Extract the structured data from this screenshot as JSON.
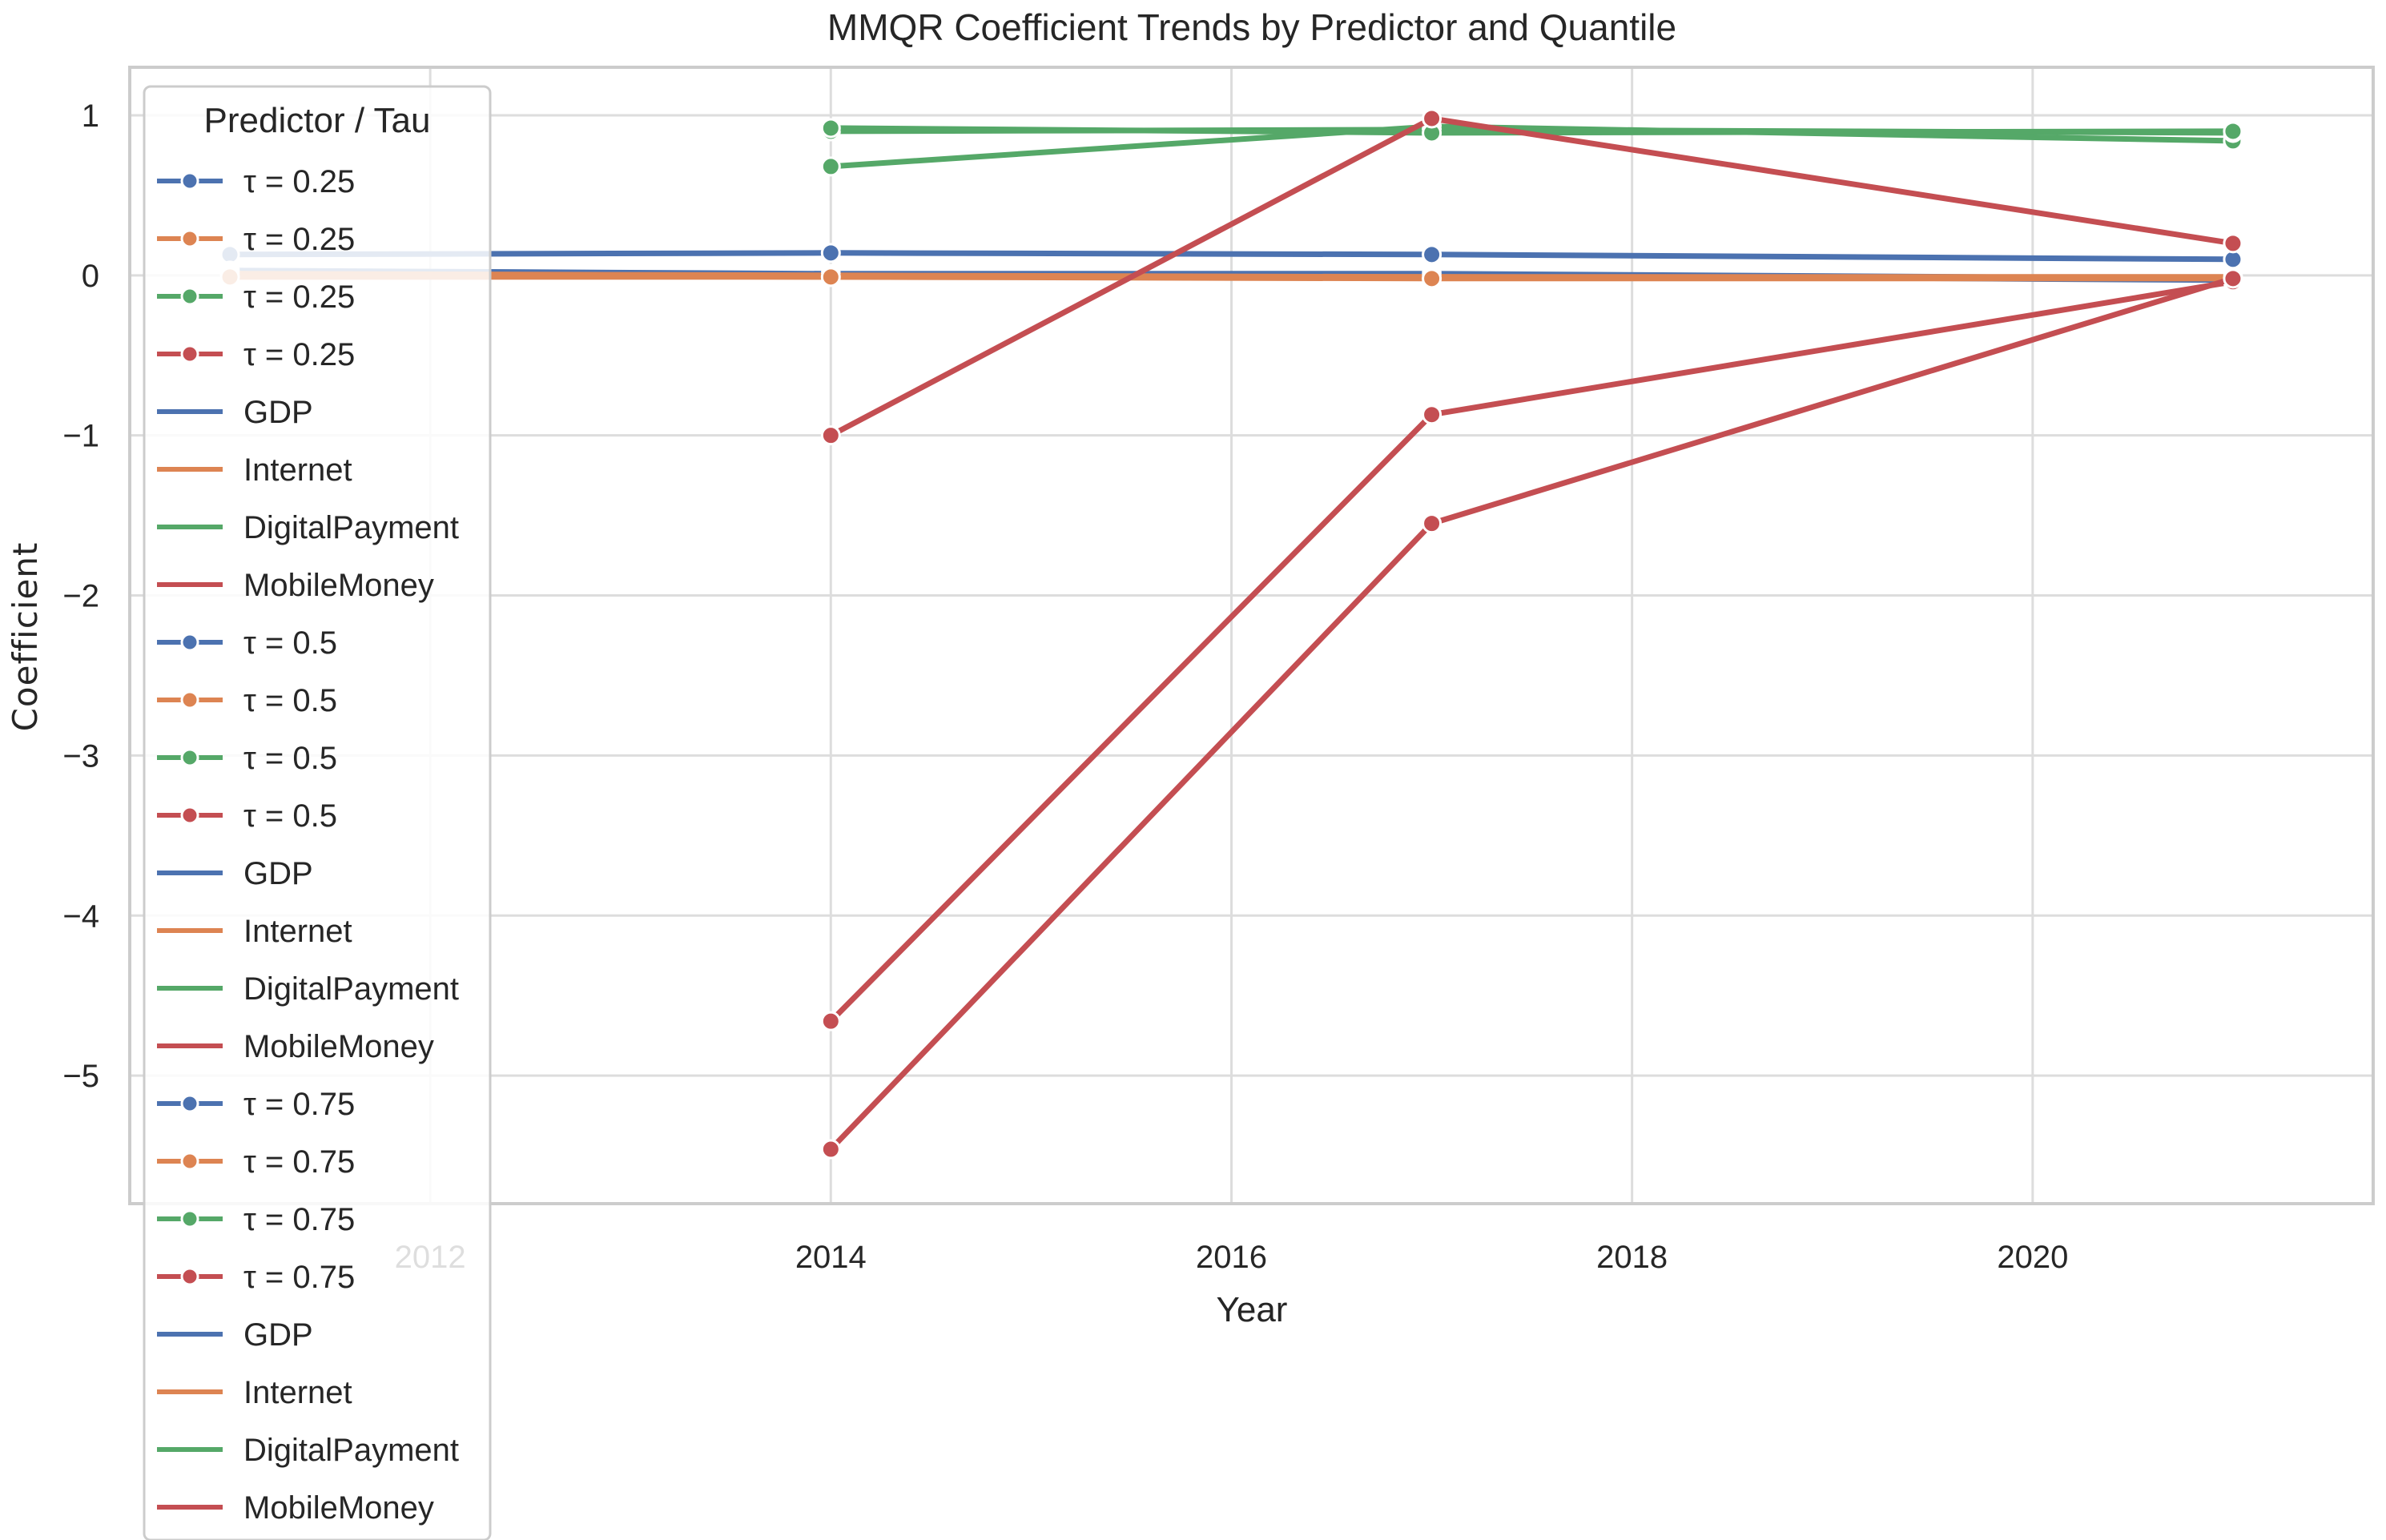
{
  "chart_data": {
    "type": "line",
    "title": "MMQR Coefficient Trends by Predictor and Quantile",
    "xlabel": "Year",
    "ylabel": "Coefficient",
    "xlim": [
      2010.5,
      2021.7
    ],
    "ylim": [
      -5.8,
      1.3
    ],
    "xticks": [
      2012,
      2014,
      2016,
      2018,
      2020
    ],
    "yticks": [
      1,
      0,
      -1,
      -2,
      -3,
      -4,
      -5
    ],
    "grid": true,
    "legend": {
      "title": "Predictor / Tau",
      "placement": "top-left",
      "entries": [
        {
          "label": "τ = 0.25",
          "color": "#4c72b0",
          "marker": true
        },
        {
          "label": "τ = 0.25",
          "color": "#dd8452",
          "marker": true
        },
        {
          "label": "τ = 0.25",
          "color": "#55a868",
          "marker": true
        },
        {
          "label": "τ = 0.25",
          "color": "#c44e52",
          "marker": true
        },
        {
          "label": "GDP",
          "color": "#4c72b0",
          "marker": false
        },
        {
          "label": "Internet",
          "color": "#dd8452",
          "marker": false
        },
        {
          "label": "DigitalPayment",
          "color": "#55a868",
          "marker": false
        },
        {
          "label": "MobileMoney",
          "color": "#c44e52",
          "marker": false
        },
        {
          "label": "τ = 0.5",
          "color": "#4c72b0",
          "marker": true
        },
        {
          "label": "τ = 0.5",
          "color": "#dd8452",
          "marker": true
        },
        {
          "label": "τ = 0.5",
          "color": "#55a868",
          "marker": true
        },
        {
          "label": "τ = 0.5",
          "color": "#c44e52",
          "marker": true
        },
        {
          "label": "GDP",
          "color": "#4c72b0",
          "marker": false
        },
        {
          "label": "Internet",
          "color": "#dd8452",
          "marker": false
        },
        {
          "label": "DigitalPayment",
          "color": "#55a868",
          "marker": false
        },
        {
          "label": "MobileMoney",
          "color": "#c44e52",
          "marker": false
        },
        {
          "label": "τ = 0.75",
          "color": "#4c72b0",
          "marker": true
        },
        {
          "label": "τ = 0.75",
          "color": "#dd8452",
          "marker": true
        },
        {
          "label": "τ = 0.75",
          "color": "#55a868",
          "marker": true
        },
        {
          "label": "τ = 0.75",
          "color": "#c44e52",
          "marker": true
        },
        {
          "label": "GDP",
          "color": "#4c72b0",
          "marker": false
        },
        {
          "label": "Internet",
          "color": "#dd8452",
          "marker": false
        },
        {
          "label": "DigitalPayment",
          "color": "#55a868",
          "marker": false
        },
        {
          "label": "MobileMoney",
          "color": "#c44e52",
          "marker": false
        }
      ]
    },
    "series": [
      {
        "name": "GDP, τ = 0.25",
        "color": "#4c72b0",
        "x": [
          2011,
          2014,
          2017,
          2021
        ],
        "y": [
          0.13,
          0.14,
          0.13,
          0.1
        ]
      },
      {
        "name": "GDP, τ = 0.5",
        "color": "#4c72b0",
        "x": [
          2011,
          2014,
          2017,
          2021
        ],
        "y": [
          0.03,
          0.01,
          0.01,
          -0.02
        ]
      },
      {
        "name": "GDP, τ = 0.75",
        "color": "#4c72b0",
        "x": [
          2011,
          2014,
          2017,
          2021
        ],
        "y": [
          0.02,
          0.0,
          0.0,
          -0.03
        ]
      },
      {
        "name": "Internet, τ = 0.25",
        "color": "#dd8452",
        "x": [
          2011,
          2014,
          2017,
          2021
        ],
        "y": [
          0.01,
          0.0,
          -0.01,
          -0.01
        ]
      },
      {
        "name": "Internet, τ = 0.5",
        "color": "#dd8452",
        "x": [
          2011,
          2014,
          2017,
          2021
        ],
        "y": [
          0.0,
          -0.01,
          -0.01,
          -0.02
        ]
      },
      {
        "name": "Internet, τ = 0.75",
        "color": "#dd8452",
        "x": [
          2011,
          2014,
          2017,
          2021
        ],
        "y": [
          -0.01,
          -0.01,
          -0.02,
          -0.02
        ]
      },
      {
        "name": "DigitalPayment, τ = 0.25",
        "color": "#55a868",
        "x": [
          2014,
          2017,
          2021
        ],
        "y": [
          0.68,
          0.93,
          0.84
        ]
      },
      {
        "name": "DigitalPayment, τ = 0.5",
        "color": "#55a868",
        "x": [
          2014,
          2017,
          2021
        ],
        "y": [
          0.9,
          0.91,
          0.89
        ]
      },
      {
        "name": "DigitalPayment, τ = 0.75",
        "color": "#55a868",
        "x": [
          2014,
          2017,
          2021
        ],
        "y": [
          0.92,
          0.89,
          0.9
        ]
      },
      {
        "name": "MobileMoney, τ = 0.25",
        "color": "#c44e52",
        "x": [
          2014,
          2017,
          2021
        ],
        "y": [
          -1.0,
          0.98,
          0.2
        ]
      },
      {
        "name": "MobileMoney, τ = 0.5",
        "color": "#c44e52",
        "x": [
          2014,
          2017,
          2021
        ],
        "y": [
          -4.66,
          -0.87,
          -0.04
        ]
      },
      {
        "name": "MobileMoney, τ = 0.75",
        "color": "#c44e52",
        "x": [
          2014,
          2017,
          2021
        ],
        "y": [
          -5.46,
          -1.55,
          -0.02
        ]
      }
    ]
  }
}
